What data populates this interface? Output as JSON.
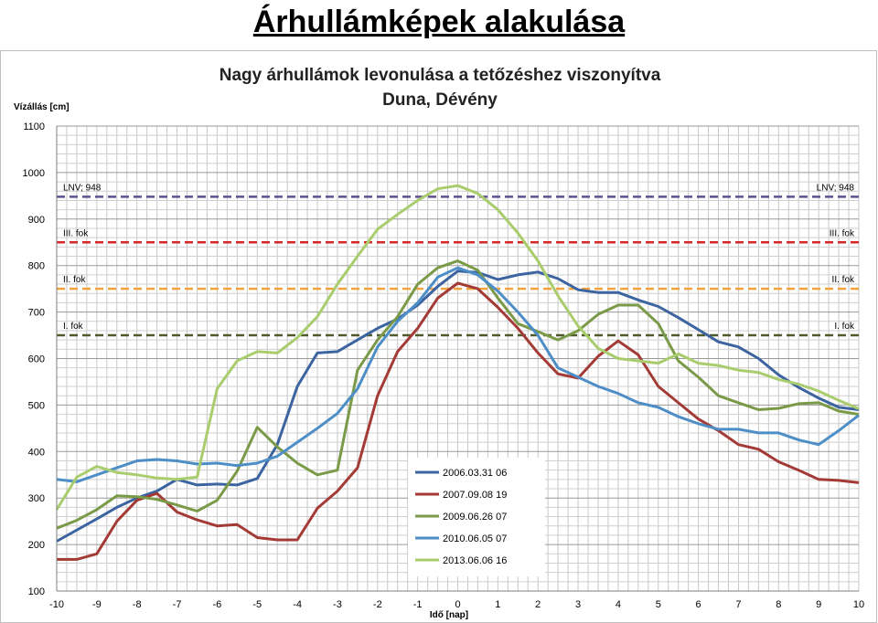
{
  "slide": {
    "title": "Árhullámképek alakulása"
  },
  "chart_data": {
    "type": "line",
    "title": "Nagy árhullámok levonulása a tetőzéshez viszonyítva",
    "subtitle": "Duna, Dévény",
    "ylabel": "Vízállás  [cm]",
    "xlabel": "Idő  [nap]",
    "xlim": [
      -10,
      10
    ],
    "ylim": [
      100,
      1100
    ],
    "x_major_ticks": [
      -10,
      -9,
      -8,
      -7,
      -6,
      -5,
      -4,
      -3,
      -2,
      -1,
      0,
      1,
      2,
      3,
      4,
      5,
      6,
      7,
      8,
      9,
      10
    ],
    "y_major_ticks": [
      100,
      200,
      300,
      400,
      500,
      600,
      700,
      800,
      900,
      1000,
      1100
    ],
    "grid": true,
    "legend_position": "bottom-center",
    "reference_lines": [
      {
        "value": 948,
        "label_left": "LNV; 948",
        "label_right": "LNV; 948",
        "color": "#5f4f8e"
      },
      {
        "value": 850,
        "label_left": "III. fok",
        "label_right": "III. fok",
        "color": "#d62728"
      },
      {
        "value": 750,
        "label_left": "II. fok",
        "label_right": "II. fok",
        "color": "#f2a23c"
      },
      {
        "value": 650,
        "label_left": "I. fok",
        "label_right": "I. fok",
        "color": "#4f5a2a"
      }
    ],
    "series": [
      {
        "name": "2006.03.31 06",
        "color": "#3c64a0",
        "x": [
          -10,
          -9,
          -8.5,
          -8,
          -7.5,
          -7,
          -6.5,
          -6,
          -5.5,
          -5,
          -4.5,
          -4,
          -3.5,
          -3,
          -2.5,
          -2,
          -1.5,
          -1,
          -0.5,
          0,
          0.5,
          1,
          1.5,
          2,
          2.5,
          3,
          3.5,
          4,
          4.5,
          5,
          5.5,
          6,
          6.5,
          7,
          7.5,
          8,
          8.5,
          9,
          9.5,
          10
        ],
        "y": [
          207,
          255,
          280,
          300,
          315,
          340,
          328,
          330,
          328,
          342,
          415,
          540,
          612,
          615,
          640,
          665,
          685,
          715,
          755,
          788,
          785,
          770,
          780,
          786,
          772,
          748,
          742,
          742,
          726,
          712,
          688,
          662,
          636,
          625,
          600,
          565,
          538,
          515,
          495,
          490
        ]
      },
      {
        "name": "2007.09.08 19",
        "color": "#a33a36",
        "x": [
          -10,
          -9.5,
          -9,
          -8.5,
          -8,
          -7.5,
          -7,
          -6.5,
          -6,
          -5.5,
          -5,
          -4.5,
          -4,
          -3.5,
          -3,
          -2.5,
          -2,
          -1.5,
          -1,
          -0.5,
          0,
          0.5,
          1,
          1.5,
          2,
          2.5,
          3,
          3.5,
          4,
          4.5,
          5,
          5.5,
          6,
          6.5,
          7,
          7.5,
          8,
          8.5,
          9,
          9.5,
          10
        ],
        "y": [
          168,
          168,
          180,
          250,
          295,
          310,
          270,
          253,
          240,
          243,
          215,
          210,
          210,
          278,
          315,
          365,
          520,
          615,
          665,
          730,
          762,
          750,
          710,
          665,
          612,
          567,
          558,
          605,
          638,
          608,
          540,
          505,
          470,
          445,
          415,
          405,
          378,
          360,
          340,
          338,
          333
        ]
      },
      {
        "name": "2009.06.26 07",
        "color": "#7a9a48",
        "x": [
          -10,
          -9.5,
          -9,
          -8.5,
          -8,
          -7.5,
          -7,
          -6.5,
          -6,
          -5.5,
          -5,
          -4.5,
          -4,
          -3.5,
          -3,
          -2.5,
          -2,
          -1.5,
          -1,
          -0.5,
          0,
          0.5,
          1,
          1.5,
          2,
          2.5,
          3,
          3.5,
          4,
          4.5,
          5,
          5.5,
          6,
          6.5,
          7,
          7.5,
          8,
          8.5,
          9,
          9.5,
          10
        ],
        "y": [
          235,
          252,
          275,
          305,
          303,
          297,
          285,
          272,
          295,
          358,
          452,
          410,
          375,
          350,
          360,
          575,
          640,
          690,
          760,
          795,
          810,
          790,
          730,
          675,
          658,
          640,
          660,
          695,
          715,
          715,
          675,
          595,
          560,
          520,
          505,
          490,
          493,
          503,
          505,
          487,
          480
        ]
      },
      {
        "name": "2010.06.05 07",
        "color": "#4e8ec7",
        "x": [
          -10,
          -9.5,
          -9,
          -8.5,
          -8,
          -7.5,
          -7,
          -6.5,
          -6,
          -5.5,
          -5,
          -4.5,
          -4,
          -3.5,
          -3,
          -2.5,
          -2,
          -1.5,
          -1,
          -0.5,
          0,
          0.5,
          1,
          1.5,
          2,
          2.5,
          3,
          3.5,
          4,
          4.5,
          5,
          5.5,
          6,
          6.5,
          7,
          7.5,
          8,
          8.5,
          9,
          9.5,
          10
        ],
        "y": [
          340,
          335,
          350,
          365,
          380,
          383,
          380,
          373,
          375,
          370,
          375,
          390,
          420,
          450,
          482,
          535,
          625,
          680,
          720,
          775,
          795,
          780,
          745,
          700,
          650,
          580,
          560,
          540,
          525,
          505,
          495,
          475,
          460,
          448,
          448,
          440,
          440,
          425,
          415,
          445,
          478
        ]
      },
      {
        "name": "2013.06.06 16",
        "color": "#a9cc6d",
        "x": [
          -10,
          -9.5,
          -9,
          -8.5,
          -8,
          -7.5,
          -7,
          -6.5,
          -6,
          -5.5,
          -5,
          -4.5,
          -4,
          -3.5,
          -3,
          -2.5,
          -2,
          -1.5,
          -1,
          -0.5,
          0,
          0.5,
          1,
          1.5,
          2,
          2.5,
          3,
          3.5,
          4,
          4.5,
          5,
          5.5,
          6,
          6.5,
          7,
          7.5,
          8,
          8.5,
          9,
          9.5,
          10
        ],
        "y": [
          275,
          345,
          368,
          355,
          350,
          343,
          340,
          345,
          535,
          595,
          615,
          612,
          645,
          690,
          760,
          820,
          878,
          910,
          940,
          965,
          972,
          955,
          920,
          870,
          810,
          735,
          670,
          622,
          600,
          595,
          590,
          610,
          590,
          585,
          575,
          570,
          555,
          545,
          530,
          510,
          492
        ]
      }
    ]
  }
}
